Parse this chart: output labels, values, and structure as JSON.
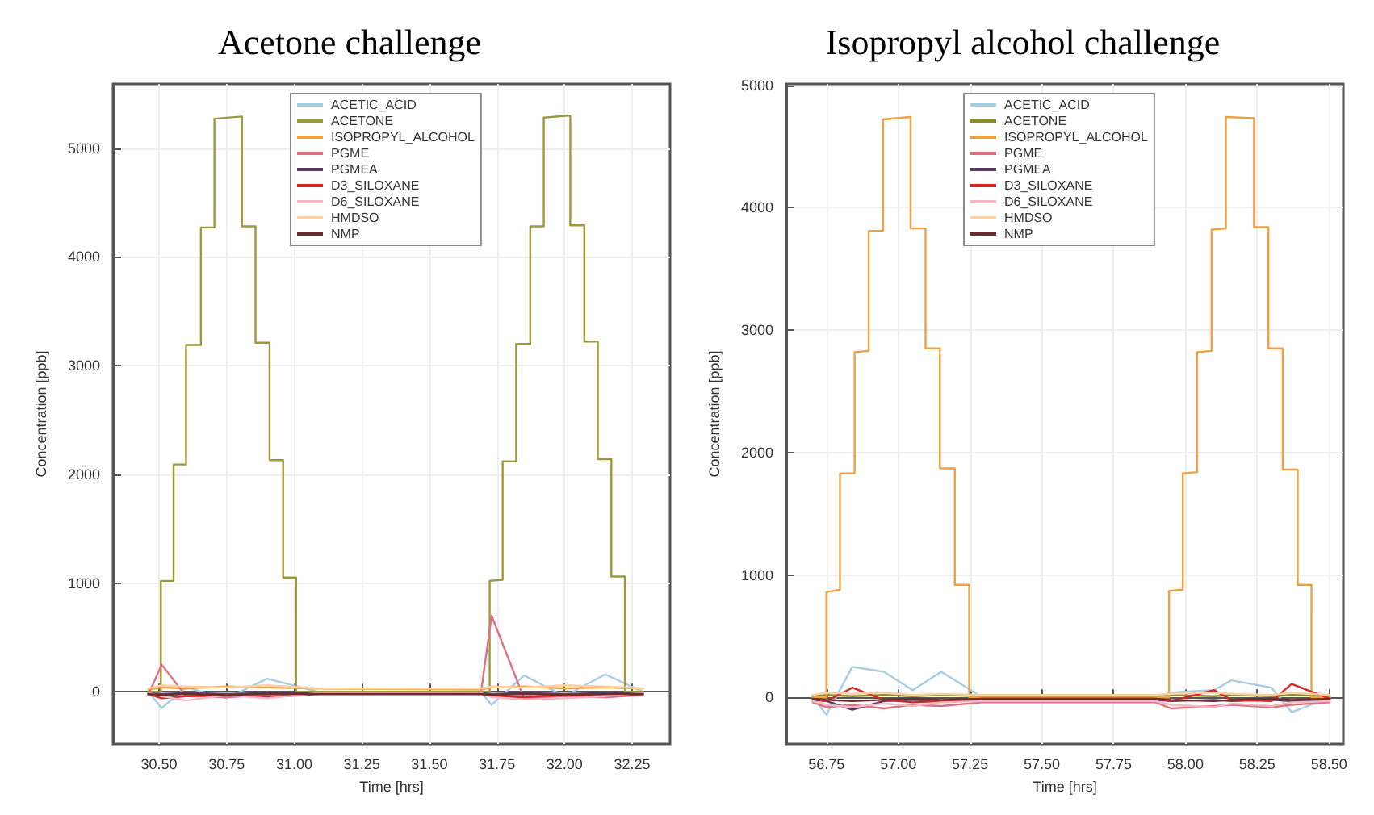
{
  "chart_data": [
    {
      "type": "line",
      "title": "Acetone challenge",
      "xlabel": "Time [hrs]",
      "ylabel": "Concentration [ppb]",
      "xlim": [
        30.33,
        32.39
      ],
      "ylim": [
        -480,
        5590
      ],
      "xticks": [
        {
          "value": 30.5,
          "label": "30.50"
        },
        30.75,
        {
          "value": 31,
          "label": "31.00"
        },
        31.25,
        {
          "value": 31.5,
          "label": "31.50"
        },
        31.75,
        {
          "value": 32,
          "label": "32.00"
        },
        32.25
      ],
      "yticks": [
        0,
        1000,
        2000,
        3000,
        4000,
        5000
      ],
      "grid": true,
      "legend": "top",
      "marker": "none",
      "line_style": "solid",
      "x": [
        30.46,
        30.51,
        30.6,
        30.75,
        30.9,
        31.09,
        31.69,
        31.73,
        31.85,
        32.0,
        32.15,
        32.29
      ],
      "series": [
        {
          "name": "ACETIC_ACID",
          "color": "#a6cee3",
          "values": [
            0,
            -150,
            40,
            -60,
            120,
            0,
            0,
            -120,
            150,
            -40,
            160,
            0
          ]
        },
        {
          "name": "ACETONE",
          "color": "#9a9a3a",
          "x": [
            30.46,
            30.507,
            30.507,
            30.554,
            30.554,
            30.6,
            30.6,
            30.655,
            30.655,
            30.705,
            30.705,
            30.807,
            30.807,
            30.857,
            30.857,
            30.909,
            30.909,
            30.959,
            30.959,
            31.007,
            31.007,
            31.09,
            31.686,
            31.723,
            31.723,
            31.771,
            31.771,
            31.821,
            31.821,
            31.873,
            31.873,
            31.923,
            31.923,
            32.021,
            32.021,
            32.073,
            32.073,
            32.123,
            32.123,
            32.173,
            32.173,
            32.223,
            32.223,
            32.289
          ],
          "values": [
            0,
            0,
            1020,
            1020,
            2090,
            2090,
            3190,
            3190,
            4270,
            4270,
            5270,
            5290,
            4280,
            4280,
            3210,
            3210,
            2130,
            2130,
            1050,
            1050,
            0,
            0,
            0,
            0,
            1020,
            1030,
            2120,
            2120,
            3200,
            3200,
            4280,
            4280,
            5280,
            5300,
            4290,
            4290,
            3220,
            3220,
            2140,
            2140,
            1060,
            1060,
            0,
            0
          ]
        },
        {
          "name": "ISOPROPYL_ALCOHOL",
          "color": "#f0a040",
          "values": [
            20,
            40,
            30,
            50,
            40,
            30,
            20,
            40,
            50,
            30,
            40,
            30
          ]
        },
        {
          "name": "PGME",
          "color": "#e07080",
          "values": [
            -30,
            250,
            -40,
            -50,
            -30,
            -20,
            -20,
            700,
            -60,
            -40,
            -50,
            -30
          ]
        },
        {
          "name": "PGMEA",
          "color": "#5a3a60",
          "values": [
            -10,
            -20,
            -10,
            -20,
            -10,
            -10,
            -10,
            -20,
            -10,
            -20,
            -10,
            -10
          ]
        },
        {
          "name": "D3_SILOXANE",
          "color": "#d62728",
          "values": [
            -20,
            -60,
            -40,
            -30,
            -50,
            -20,
            -20,
            -40,
            -50,
            -30,
            -40,
            -20
          ]
        },
        {
          "name": "D6_SILOXANE",
          "color": "#f4b6c2",
          "values": [
            -10,
            -40,
            -80,
            -30,
            -60,
            -10,
            -10,
            -50,
            -70,
            -60,
            -40,
            -10
          ]
        },
        {
          "name": "HMDSO",
          "color": "#fdd0a2",
          "values": [
            30,
            60,
            50,
            40,
            60,
            30,
            30,
            50,
            40,
            60,
            50,
            30
          ]
        },
        {
          "name": "NMP",
          "color": "#6b2c2c",
          "values": [
            -20,
            -30,
            -20,
            -30,
            -20,
            -20,
            -20,
            -30,
            -20,
            -30,
            -20,
            -20
          ]
        }
      ]
    },
    {
      "type": "line",
      "title": "Isopropyl alcohol challenge",
      "xlabel": "Time [hrs]",
      "ylabel": "Concentration [ppb]",
      "xlim": [
        56.61,
        58.55
      ],
      "ylim": [
        -380,
        5010
      ],
      "xticks": [
        56.75,
        {
          "value": 57,
          "label": "57.00"
        },
        57.25,
        {
          "value": 57.5,
          "label": "57.50"
        },
        57.75,
        {
          "value": 58,
          "label": "58.00"
        },
        58.25,
        {
          "value": 58.5,
          "label": "58.50"
        }
      ],
      "yticks": [
        0,
        1000,
        2000,
        3000,
        4000,
        5000
      ],
      "grid": true,
      "legend": "top",
      "marker": "none",
      "line_style": "solid",
      "x": [
        56.702,
        56.75,
        56.84,
        56.95,
        57.05,
        57.15,
        57.293,
        57.895,
        57.95,
        58.1,
        58.16,
        58.3,
        58.37,
        58.503
      ],
      "series": [
        {
          "name": "ACETIC_ACID",
          "color": "#a6cee3",
          "values": [
            0,
            -140,
            250,
            210,
            60,
            210,
            0,
            0,
            40,
            60,
            140,
            80,
            -120,
            0
          ]
        },
        {
          "name": "ACETONE",
          "color": "#8c8c2a",
          "values": [
            10,
            20,
            10,
            20,
            10,
            20,
            10,
            10,
            20,
            10,
            20,
            10,
            20,
            10
          ]
        },
        {
          "name": "ISOPROPYL_ALCOHOL",
          "color": "#f0a040",
          "x": [
            56.702,
            56.75,
            56.75,
            56.797,
            56.797,
            56.848,
            56.848,
            56.897,
            56.897,
            56.947,
            56.947,
            57.043,
            57.043,
            57.095,
            57.095,
            57.145,
            57.145,
            57.197,
            57.197,
            57.247,
            57.247,
            57.293,
            57.895,
            57.943,
            57.943,
            57.991,
            57.991,
            58.041,
            58.041,
            58.091,
            58.091,
            58.141,
            58.141,
            58.239,
            58.239,
            58.289,
            58.289,
            58.339,
            58.339,
            58.391,
            58.391,
            58.439,
            58.439,
            58.503
          ],
          "values": [
            0,
            0,
            860,
            880,
            1830,
            1830,
            2820,
            2830,
            3810,
            3810,
            4720,
            4740,
            3830,
            3830,
            2850,
            2850,
            1870,
            1870,
            920,
            920,
            0,
            0,
            0,
            0,
            870,
            880,
            1830,
            1840,
            2820,
            2830,
            3820,
            3830,
            4740,
            4730,
            3840,
            3840,
            2850,
            2850,
            1860,
            1860,
            920,
            920,
            0,
            0
          ]
        },
        {
          "name": "PGME",
          "color": "#e07080",
          "values": [
            -40,
            -80,
            -60,
            -90,
            -60,
            -70,
            -40,
            -40,
            -90,
            -70,
            -60,
            -80,
            -60,
            -40
          ]
        },
        {
          "name": "PGMEA",
          "color": "#5a3a60",
          "values": [
            -20,
            -30,
            -100,
            -30,
            -20,
            -30,
            -20,
            -20,
            -30,
            -20,
            -30,
            -20,
            -30,
            -20
          ]
        },
        {
          "name": "D3_SILOXANE",
          "color": "#d62728",
          "values": [
            -10,
            -30,
            80,
            -20,
            -40,
            -30,
            -10,
            -10,
            -30,
            60,
            -20,
            -30,
            110,
            -10
          ]
        },
        {
          "name": "D6_SILOXANE",
          "color": "#f4b6c2",
          "values": [
            -30,
            -60,
            -80,
            -50,
            -70,
            -40,
            -30,
            -30,
            -60,
            -80,
            -50,
            -70,
            -40,
            -30
          ]
        },
        {
          "name": "HMDSO",
          "color": "#fdd0a2",
          "values": [
            20,
            40,
            30,
            40,
            20,
            30,
            20,
            20,
            30,
            40,
            30,
            20,
            40,
            20
          ]
        },
        {
          "name": "NMP",
          "color": "#6b2c2c",
          "values": [
            -10,
            -20,
            -30,
            -20,
            -10,
            -20,
            -10,
            -10,
            -20,
            -30,
            -20,
            -10,
            -20,
            -10
          ]
        }
      ]
    }
  ]
}
